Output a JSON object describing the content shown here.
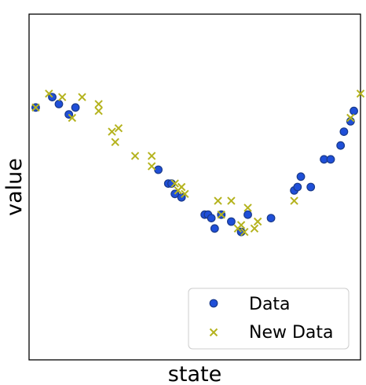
{
  "chart_data": {
    "type": "scatter",
    "xlabel": "state",
    "ylabel": "value",
    "xlim": [
      0,
      100
    ],
    "ylim": [
      0,
      100
    ],
    "ticks_shown": false,
    "grid": false,
    "legend_position": "bottom-right",
    "series": [
      {
        "name": "Data",
        "marker": "circle",
        "color": "#1f4fd8",
        "edge_color": "#1a3a8a",
        "points": [
          [
            2,
            73
          ],
          [
            7,
            76
          ],
          [
            9,
            74
          ],
          [
            12,
            71
          ],
          [
            14,
            73
          ],
          [
            39,
            55
          ],
          [
            42,
            51
          ],
          [
            43,
            51
          ],
          [
            44,
            48
          ],
          [
            46,
            47
          ],
          [
            53,
            42
          ],
          [
            54,
            42
          ],
          [
            55,
            41
          ],
          [
            56,
            38
          ],
          [
            58,
            42
          ],
          [
            61,
            40
          ],
          [
            64,
            37
          ],
          [
            66,
            42
          ],
          [
            73,
            41
          ],
          [
            80,
            49
          ],
          [
            81,
            50
          ],
          [
            82,
            53
          ],
          [
            85,
            50
          ],
          [
            89,
            58
          ],
          [
            91,
            58
          ],
          [
            94,
            62
          ],
          [
            95,
            66
          ],
          [
            97,
            69
          ],
          [
            98,
            72
          ]
        ]
      },
      {
        "name": "New Data",
        "marker": "x",
        "color": "#b5b31f",
        "points": [
          [
            2,
            73
          ],
          [
            6,
            77
          ],
          [
            10,
            76
          ],
          [
            13,
            70
          ],
          [
            16,
            76
          ],
          [
            21,
            74
          ],
          [
            21,
            72
          ],
          [
            25,
            66
          ],
          [
            26,
            63
          ],
          [
            27,
            67
          ],
          [
            32,
            59
          ],
          [
            37,
            59
          ],
          [
            37,
            56
          ],
          [
            44,
            51
          ],
          [
            45,
            49
          ],
          [
            46,
            50
          ],
          [
            47,
            48
          ],
          [
            57,
            46
          ],
          [
            58,
            42
          ],
          [
            61,
            46
          ],
          [
            63,
            38
          ],
          [
            64,
            39
          ],
          [
            65,
            37
          ],
          [
            66,
            44
          ],
          [
            68,
            38
          ],
          [
            69,
            40
          ],
          [
            80,
            46
          ],
          [
            97,
            70
          ],
          [
            100,
            77
          ]
        ]
      }
    ]
  }
}
